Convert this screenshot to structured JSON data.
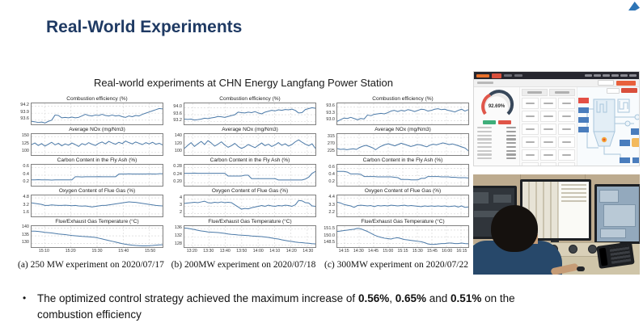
{
  "colors": {
    "title": "#1f3a63",
    "series_line": "#4c7aa8",
    "dashboard_accent": "#e8603c",
    "gauge_red": "#e0564a",
    "gauge_dark": "#37475a"
  },
  "slide": {
    "title": "Real-World Experiments",
    "subtitle": "Real-world experiments at CHN Energy Langfang Power Station",
    "bullet": {
      "marker": "•",
      "text_pre": "The optimized control strategy achieved the maximum increase of ",
      "value1": "0.56%",
      "sep1": ", ",
      "value2": "0.65%",
      "sep2": " and ",
      "value3": "0.51%",
      "text_post": " on the combustion efficiency"
    }
  },
  "dashboard": {
    "gauge_value": "92.69%"
  },
  "chart_data": [
    {
      "type": "line",
      "caption": "(a) 250 MW experiment on 2020/07/17",
      "xticks": [
        "15:10",
        "15:20",
        "15:30",
        "15:40",
        "15:50"
      ],
      "charts": [
        {
          "title": "Combustion efficiency (%)",
          "yticks": [
            "94.2",
            "93.9",
            "93.6"
          ],
          "ylim": [
            93.42,
            94.32
          ],
          "values": [
            93.55,
            93.53,
            93.5,
            93.52,
            93.48,
            93.55,
            93.6,
            93.82,
            93.8,
            93.7,
            93.72,
            93.7,
            93.73,
            93.7,
            93.72,
            93.78,
            93.85,
            93.8,
            93.78,
            93.82,
            93.8,
            93.85,
            93.8,
            93.78,
            93.82,
            93.78,
            93.8,
            93.75,
            93.72,
            93.78,
            93.75,
            93.8,
            93.78,
            93.85,
            93.9,
            93.95,
            94.0,
            94.05,
            94.1,
            94.08
          ]
        },
        {
          "title": "Average NOx (mg/Nm3)",
          "yticks": [
            "150",
            "125",
            "100"
          ],
          "ylim": [
            92,
            158
          ],
          "values": [
            125,
            130,
            122,
            128,
            120,
            126,
            132,
            124,
            129,
            121,
            127,
            123,
            130,
            125,
            119,
            128,
            124,
            131,
            126,
            122,
            129,
            133,
            127,
            135,
            130,
            126,
            132,
            128,
            136,
            131,
            127,
            133,
            129,
            125,
            131,
            127,
            132,
            126,
            129,
            124
          ]
        },
        {
          "title": "Carbon Content in the Fly Ash (%)",
          "yticks": [
            "0.6",
            "0.4",
            "0.2"
          ],
          "ylim": [
            0.13,
            0.67
          ],
          "values": [
            0.28,
            0.28,
            0.285,
            0.28,
            0.28,
            0.28,
            0.275,
            0.28,
            0.28,
            0.28,
            0.28,
            0.28,
            0.28,
            0.36,
            0.36,
            0.355,
            0.36,
            0.36,
            0.36,
            0.36,
            0.365,
            0.36,
            0.36,
            0.36,
            0.36,
            0.36,
            0.43,
            0.43,
            0.43,
            0.435,
            0.43,
            0.43,
            0.43,
            0.43,
            0.43,
            0.435,
            0.43,
            0.43,
            0.44,
            0.44
          ]
        },
        {
          "title": "Oxygen Content of Flue Gas (%)",
          "yticks": [
            "4.8",
            "3.2",
            "1.6"
          ],
          "ylim": [
            1.1,
            5.3
          ],
          "values": [
            3.8,
            3.7,
            3.6,
            3.5,
            3.3,
            3.3,
            3.4,
            3.35,
            3.3,
            3.3,
            3.35,
            3.3,
            3.25,
            3.3,
            3.2,
            3.15,
            3.2,
            3.1,
            3.0,
            3.1,
            3.2,
            3.3,
            3.3,
            3.4,
            3.5,
            3.6,
            3.7,
            3.8,
            3.9,
            4.0,
            3.95,
            3.9,
            3.8,
            3.7,
            3.6,
            3.5,
            3.4,
            3.3,
            3.25,
            3.2
          ]
        },
        {
          "title": "Flue/Exhaust Gas Temperature (°C)",
          "yticks": [
            "140",
            "135",
            "130"
          ],
          "ylim": [
            127.8,
            141.2
          ],
          "values": [
            138,
            138,
            137.8,
            137.5,
            137.2,
            137,
            136.8,
            136.5,
            136.2,
            136,
            135.8,
            135.5,
            135.2,
            135,
            134.8,
            134.6,
            134.5,
            134.4,
            134.2,
            134,
            133.5,
            133,
            132.5,
            132,
            131.5,
            131,
            130.5,
            130,
            129.6,
            129.3,
            129,
            128.8,
            128.7,
            128.6,
            128.6,
            128.7,
            128.8,
            129,
            129.2,
            129.3
          ]
        }
      ]
    },
    {
      "type": "line",
      "caption": "(b) 200MW experiment on 2020/07/18",
      "xticks": [
        "13:20",
        "13:30",
        "13:40",
        "13:50",
        "14:00",
        "14:10",
        "14:20",
        "14:30"
      ],
      "charts": [
        {
          "title": "Combustion efficiency (%)",
          "yticks": [
            "94.0",
            "93.6",
            "93.2"
          ],
          "ylim": [
            93.05,
            94.25
          ],
          "values": [
            93.35,
            93.33,
            93.35,
            93.3,
            93.32,
            93.35,
            93.4,
            93.38,
            93.42,
            93.45,
            93.5,
            93.48,
            93.45,
            93.5,
            93.55,
            93.6,
            93.75,
            93.72,
            93.7,
            93.75,
            93.72,
            93.78,
            93.7,
            93.65,
            93.75,
            93.8,
            93.85,
            93.82,
            93.88,
            93.85,
            93.9,
            93.88,
            93.92,
            93.85,
            93.7,
            93.72,
            93.9,
            93.95,
            94.0,
            93.97
          ]
        },
        {
          "title": "Average NOx (mg/Nm3)",
          "yticks": [
            "140",
            "120",
            "100"
          ],
          "ylim": [
            93,
            147
          ],
          "values": [
            110,
            118,
            125,
            115,
            122,
            128,
            120,
            130,
            124,
            116,
            121,
            127,
            119,
            113,
            117,
            123,
            115,
            110,
            114,
            120,
            116,
            112,
            118,
            124,
            117,
            121,
            115,
            119,
            125,
            118,
            122,
            116,
            120,
            127,
            132,
            126,
            121,
            117,
            122,
            110
          ]
        },
        {
          "title": "Carbon Content in the Fly Ash (%)",
          "yticks": [
            "0.28",
            "0.24",
            "0.20"
          ],
          "ylim": [
            0.185,
            0.295
          ],
          "values": [
            0.25,
            0.25,
            0.25,
            0.251,
            0.25,
            0.25,
            0.25,
            0.25,
            0.25,
            0.25,
            0.25,
            0.25,
            0.25,
            0.236,
            0.236,
            0.236,
            0.236,
            0.236,
            0.24,
            0.24,
            0.222,
            0.222,
            0.222,
            0.222,
            0.222,
            0.222,
            0.222,
            0.222,
            0.215,
            0.215,
            0.215,
            0.215,
            0.215,
            0.215,
            0.215,
            0.215,
            0.22,
            0.23,
            0.25,
            0.26
          ]
        },
        {
          "title": "Oxygen Content of Flue Gas (%)",
          "yticks": [
            "4",
            "3",
            "2"
          ],
          "ylim": [
            1.6,
            4.5
          ],
          "values": [
            3.4,
            3.45,
            3.5,
            3.55,
            3.5,
            3.6,
            3.7,
            3.5,
            3.45,
            3.55,
            3.5,
            3.6,
            3.5,
            3.55,
            3.5,
            3.2,
            2.9,
            2.6,
            2.7,
            2.65,
            2.8,
            2.9,
            3.0,
            3.1,
            3.0,
            3.15,
            3.05,
            3.0,
            3.1,
            3.05,
            3.15,
            3.1,
            3.0,
            3.2,
            3.8,
            3.75,
            3.5,
            3.45,
            3.05,
            3.0
          ]
        },
        {
          "title": "Flue/Exhaust Gas Temperature (°C)",
          "yticks": [
            "136",
            "132",
            "128"
          ],
          "ylim": [
            127.0,
            137.4
          ],
          "values": [
            136.5,
            136.3,
            136,
            135.7,
            135.3,
            135,
            134.8,
            134.5,
            134.4,
            134.3,
            134.2,
            134,
            133.8,
            133.5,
            133.3,
            133.2,
            133,
            132.9,
            132.8,
            132.7,
            132.5,
            132.4,
            132.3,
            132.2,
            132,
            131.8,
            131.5,
            131.2,
            131,
            130.6,
            130.3,
            130,
            129.8,
            129.5,
            129.3,
            129.2,
            129,
            128.9,
            128.7,
            128.6
          ]
        }
      ]
    },
    {
      "type": "line",
      "caption": "(c) 300MW experiment on 2020/07/22",
      "xticks": [
        "14:15",
        "14:30",
        "14:45",
        "15:00",
        "15:15",
        "15:30",
        "15:45",
        "16:00",
        "16:15"
      ],
      "charts": [
        {
          "title": "Combustion efficiency (%)",
          "yticks": [
            "93.6",
            "93.3",
            "93.0"
          ],
          "ylim": [
            92.85,
            93.75
          ],
          "values": [
            92.98,
            93.05,
            93.12,
            93.1,
            93.15,
            93.1,
            93.05,
            93.1,
            93.08,
            93.25,
            93.22,
            93.28,
            93.3,
            93.32,
            93.3,
            93.35,
            93.42,
            93.45,
            93.4,
            93.45,
            93.42,
            93.48,
            93.45,
            93.4,
            93.45,
            93.5,
            93.48,
            93.42,
            93.45,
            93.5,
            93.52,
            93.48,
            93.5,
            93.45,
            93.42,
            93.38,
            93.45,
            93.5,
            93.42,
            93.48
          ]
        },
        {
          "title": "Average NOx (mg/Nm3)",
          "yticks": [
            "315",
            "270",
            "225"
          ],
          "ylim": [
            205,
            335
          ],
          "values": [
            245,
            240,
            242,
            238,
            241,
            244,
            240,
            252,
            260,
            265,
            258,
            250,
            238,
            252,
            262,
            270,
            275,
            268,
            262,
            270,
            278,
            272,
            265,
            258,
            263,
            270,
            268,
            262,
            256,
            266,
            272,
            268,
            274,
            280,
            276,
            270,
            274,
            268,
            262,
            255,
            248,
            232
          ]
        },
        {
          "title": "Carbon Content in the Fly Ash (%)",
          "yticks": [
            "0.6",
            "0.4",
            "0.2"
          ],
          "ylim": [
            0.13,
            0.7
          ],
          "values": [
            0.52,
            0.52,
            0.52,
            0.5,
            0.45,
            0.45,
            0.45,
            0.44,
            0.38,
            0.38,
            0.38,
            0.38,
            0.37,
            0.37,
            0.37,
            0.37,
            0.37,
            0.36,
            0.35,
            0.3,
            0.3,
            0.3,
            0.29,
            0.29,
            0.29,
            0.33,
            0.33,
            0.38,
            0.38,
            0.38,
            0.38,
            0.37,
            0.37,
            0.37,
            0.36,
            0.36,
            0.35,
            0.35,
            0.35,
            0.34
          ]
        },
        {
          "title": "Oxygen Content of Flue Gas (%)",
          "yticks": [
            "4.4",
            "3.3",
            "2.2"
          ],
          "ylim": [
            1.85,
            4.75
          ],
          "values": [
            3.8,
            3.7,
            3.5,
            3.4,
            3.3,
            3.1,
            3.35,
            3.4,
            3.35,
            3.3,
            3.35,
            3.2,
            3.35,
            3.3,
            3.35,
            3.3,
            3.4,
            3.35,
            3.3,
            3.35,
            3.4,
            3.3,
            3.35,
            3.3,
            3.25,
            3.2,
            3.3,
            3.25,
            3.3,
            3.25,
            3.3,
            3.25,
            3.3,
            3.2,
            3.25,
            3.3,
            3.15,
            3.3,
            3.1,
            3.15
          ]
        },
        {
          "title": "Flue/Exhaust Gas Temperature (°C)",
          "yticks": [
            "151.5",
            "150.0",
            "148.5"
          ],
          "ylim": [
            147.7,
            152.4
          ],
          "values": [
            151.2,
            151.3,
            151.4,
            151.5,
            151.6,
            151.7,
            151.9,
            151.8,
            151.5,
            151.2,
            150.8,
            150.4,
            150.1,
            149.9,
            149.7,
            149.6,
            149.5,
            149.7,
            149.8,
            149.6,
            149.4,
            149.3,
            149.2,
            149.1,
            149.0,
            148.9,
            148.7,
            148.4,
            148.3,
            148.3,
            148.4,
            148.5,
            148.5,
            148.6,
            148.6,
            148.5,
            148.5,
            148.6,
            148.5,
            148.45
          ]
        }
      ]
    }
  ]
}
